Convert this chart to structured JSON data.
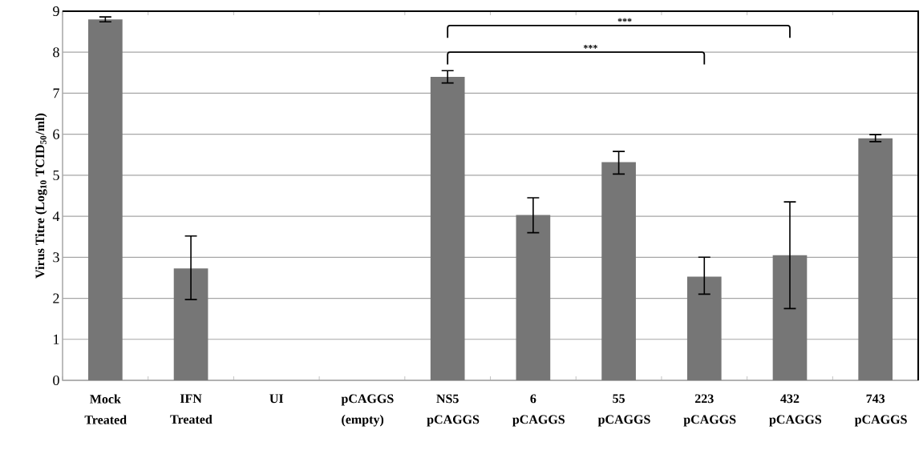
{
  "chart_data": {
    "type": "bar",
    "ylabel": "Virus Titre (Log$_{10}$ TCID$_{50}$/ml)",
    "categories": [
      "Mock Treated",
      "IFN Treated",
      "UI",
      "pCAGGS (empty)",
      "NS5 pCAGGS",
      "6 pCAGGS",
      "55 pCAGGS",
      "223 pCAGGS",
      "432 pCAGGS",
      "743 pCAGGS"
    ],
    "values": [
      8.8,
      2.73,
      0,
      0,
      7.4,
      4.03,
      5.32,
      2.53,
      3.05,
      5.9
    ],
    "errors": [
      [
        8.74,
        8.86
      ],
      [
        1.97,
        3.52
      ],
      null,
      null,
      [
        7.25,
        7.55
      ],
      [
        3.6,
        4.45
      ],
      [
        5.03,
        5.58
      ],
      [
        2.1,
        3.0
      ],
      [
        1.75,
        4.35
      ],
      [
        5.82,
        5.99
      ]
    ],
    "color": "#767676",
    "ylim": [
      0,
      9
    ],
    "yticks": [
      0,
      1,
      2,
      3,
      4,
      5,
      6,
      7,
      8,
      9
    ],
    "grid": "y",
    "annotations": [
      "***",
      "***"
    ]
  }
}
